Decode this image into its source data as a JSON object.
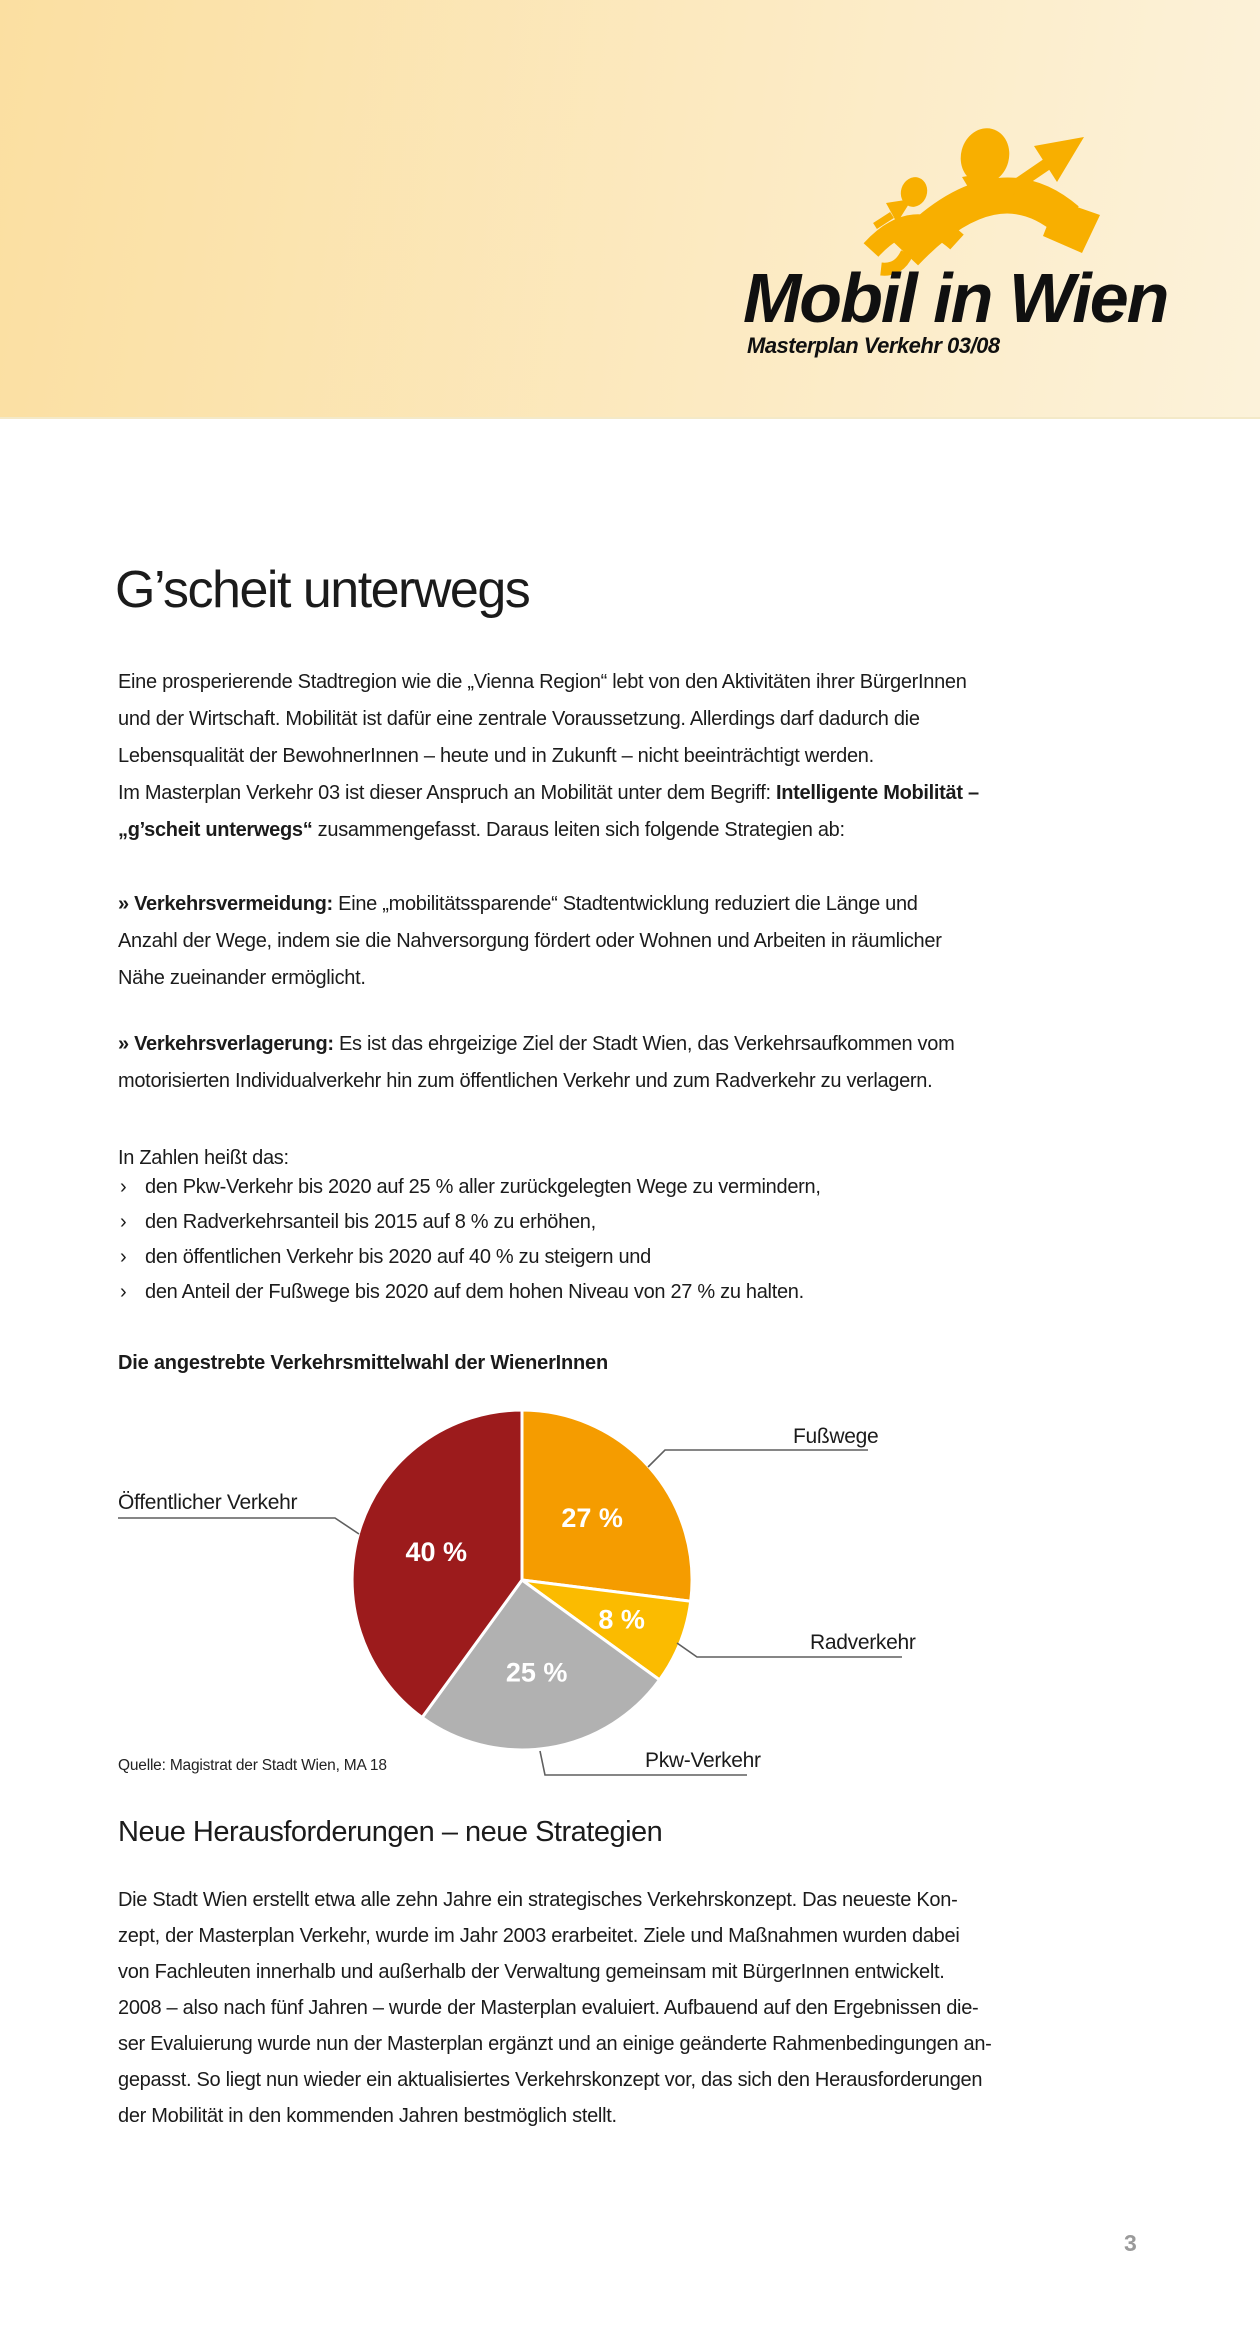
{
  "page": {
    "number": "3"
  },
  "header": {
    "gradient": [
      "#FBDFA1",
      "#FCF2DA"
    ],
    "logo": {
      "title": "Mobil in Wien",
      "subtitle": "Masterplan Verkehr 03/08",
      "color": "#F8AF00"
    }
  },
  "intro": {
    "title": "G’scheit unterwegs",
    "p1_part1": "Eine prosperierende Stadtregion wie die „Vienna Region“ lebt von den Aktivitäten ihrer BürgerInnen\nund der Wirtschaft. Mobilität ist dafür eine zentrale Voraussetzung. Allerdings darf dadurch die\nLebensqualität der BewohnerInnen – heute und in Zukunft – nicht beeinträchtigt werden.\nIm Masterplan Verkehr 03 ist dieser Anspruch an Mobilität unter dem Begriff: ",
    "p1_bold": "Intelligente Mobilität –\n„g’scheit unterwegs“",
    "p1_part2": " zusammengefasst. Daraus leiten sich folgende Strategien ab:",
    "strategies": [
      {
        "label": "» Verkehrsvermeidung:",
        "text": " Eine „mobilitätssparende“ Stadtentwicklung reduziert die Länge und\nAnzahl der Wege, indem sie die Nahversorgung fördert oder Wohnen und Arbeiten in räumlicher\nNähe zueinander ermöglicht."
      },
      {
        "label": "» Verkehrsverlagerung:",
        "text": " Es ist das ehrgeizige Ziel der Stadt Wien, das Verkehrsaufkommen vom\nmotorisierten Individualverkehr hin zum öffentlichen Verkehr und zum Radverkehr zu verlagern."
      }
    ]
  },
  "goals": {
    "intro": "In Zahlen heißt das:",
    "bullet": "›",
    "items": [
      "den Pkw-Verkehr bis 2020 auf 25 % aller zurückgelegten Wege zu vermindern,",
      "den Radverkehrsanteil bis 2015 auf 8 % zu erhöhen,",
      "den öffentlichen Verkehr bis 2020 auf 40 % zu steigern und",
      "den Anteil der Fußwege bis 2020 auf dem hohen Niveau von 27 % zu halten."
    ]
  },
  "chart": {
    "heading": "Die angestrebte Verkehrsmittelwahl der WienerInnen",
    "source": "Quelle: Magistrat der Stadt Wien, MA 18"
  },
  "chart_data": {
    "type": "pie",
    "title": "Die angestrebte Verkehrsmittelwahl der WienerInnen",
    "source": "Quelle: Magistrat der Stadt Wien, MA 18",
    "unit": "%",
    "start_angle": "top",
    "direction": "clockwise",
    "slices": [
      {
        "label": "Fußwege",
        "value": 27,
        "color": "#F59C00"
      },
      {
        "label": "Radverkehr",
        "value": 8,
        "color": "#FBBB00"
      },
      {
        "label": "Pkw-Verkehr",
        "value": 25,
        "color": "#B1B1B1"
      },
      {
        "label": "Öffentlicher Verkehr",
        "value": 40,
        "color": "#9C1B1C"
      }
    ]
  },
  "section2": {
    "heading": "Neue Herausforderungen – neue Strategien",
    "body": "Die Stadt Wien erstellt etwa alle zehn Jahre ein strategisches Verkehrskonzept. Das neueste Kon-\nzept, der Masterplan Verkehr, wurde im Jahr 2003 erarbeitet. Ziele und Maßnahmen wurden dabei\nvon Fachleuten innerhalb und außerhalb der Verwaltung gemeinsam mit BürgerInnen entwickelt.\n2008 – also nach fünf Jahren – wurde der Masterplan evaluiert. Aufbauend auf den Ergebnissen die-\nser Evaluierung wurde nun der Masterplan ergänzt und an einige geänderte Rahmenbedingungen an-\ngepasst. So liegt nun wieder ein aktualisiertes Verkehrskonzept vor, das sich den Herausforderungen\nder Mobilität in den kommenden Jahren bestmöglich stellt."
  }
}
